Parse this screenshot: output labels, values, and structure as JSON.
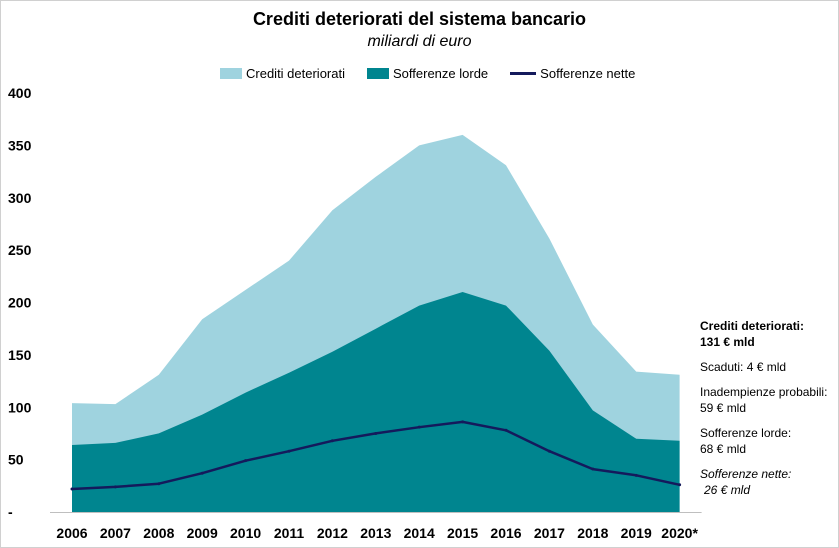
{
  "chart_data": {
    "type": "area",
    "title": "Crediti deteriorati del sistema bancario",
    "subtitle": "miliardi di euro",
    "categories": [
      "2006",
      "2007",
      "2008",
      "2009",
      "2010",
      "2011",
      "2012",
      "2013",
      "2014",
      "2015",
      "2016",
      "2017",
      "2018",
      "2019",
      "2020*"
    ],
    "series": [
      {
        "name": "Crediti deteriorati",
        "kind": "area",
        "color": "#9fd3df",
        "values": [
          104,
          103,
          131,
          184,
          212,
          240,
          288,
          320,
          350,
          360,
          331,
          261,
          179,
          134,
          131
        ]
      },
      {
        "name": "Sofferenze lorde",
        "kind": "area",
        "color": "#00858f",
        "values": [
          64,
          66,
          75,
          93,
          114,
          133,
          153,
          175,
          197,
          210,
          197,
          154,
          97,
          70,
          68
        ]
      },
      {
        "name": "Sofferenze nette",
        "kind": "line",
        "color": "#141a5c",
        "values": [
          22,
          24,
          27,
          37,
          49,
          58,
          68,
          75,
          81,
          86,
          78,
          58,
          41,
          35,
          26
        ]
      }
    ],
    "yaxis": {
      "ylim": [
        0,
        400
      ],
      "tick_values": [
        0,
        50,
        100,
        150,
        200,
        250,
        300,
        350,
        400
      ],
      "tick_labels": [
        "-",
        "50",
        "100",
        "150",
        "200",
        "250",
        "300",
        "350",
        "400"
      ]
    },
    "xlabel": "",
    "ylabel": "",
    "legend_position": "top-center",
    "grid": false
  },
  "annotations": {
    "crediti_label": "Crediti deteriorati:",
    "crediti_value": "131 € mld",
    "scaduti": "Scaduti: 4 € mld",
    "inadempienze_label": "Inadempienze probabili:",
    "inadempienze_value": "59 € mld",
    "sofferenze_lorde_label": "Sofferenze lorde:",
    "sofferenze_lorde_value": "68 € mld",
    "sofferenze_nette_label": "Sofferenze nette:",
    "sofferenze_nette_value": "26 € mld"
  }
}
